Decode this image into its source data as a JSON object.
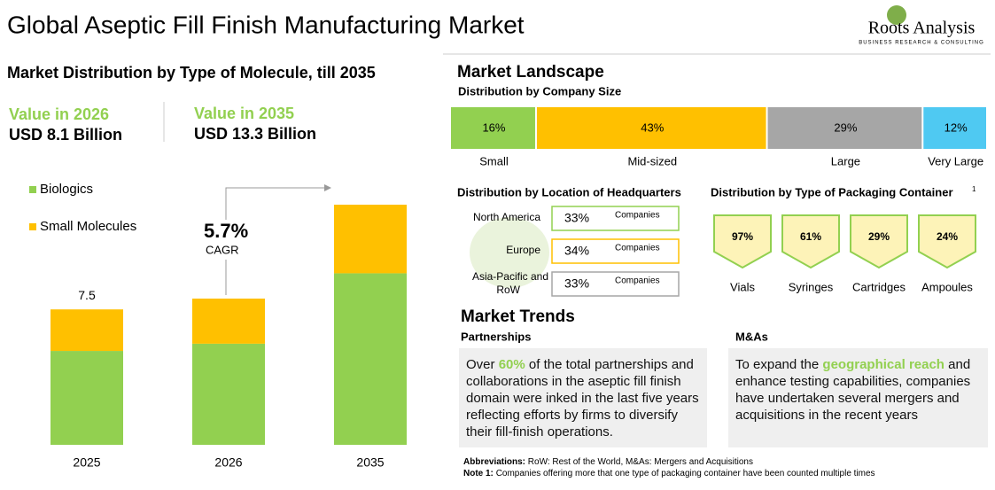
{
  "header": {
    "title": "Global Aseptic Fill Finish Manufacturing Market",
    "logo": "Roots Analysis",
    "logo_tagline": "BUSINESS RESEARCH & CONSULTING"
  },
  "left_panel": {
    "title": "Market Distribution by Type of Molecule, till 2035",
    "highlights": [
      {
        "label": "Value in 2026",
        "value": "USD 8.1 Billion"
      },
      {
        "label": "Value in 2035",
        "value": "USD 13.3 Billion"
      }
    ],
    "cagr": {
      "value": "5.7%",
      "label": "CAGR"
    }
  },
  "right_panel": {
    "title": "Market Landscape"
  },
  "chart_data": [
    {
      "type": "bar",
      "stacked": true,
      "categories": [
        "2025",
        "2026",
        "2035"
      ],
      "series": [
        {
          "name": "Biologics",
          "color": "#92d050",
          "values": [
            5.2,
            5.6,
            9.5
          ]
        },
        {
          "name": "Small Molecules",
          "color": "#ffc000",
          "values": [
            2.3,
            2.5,
            3.8
          ]
        }
      ],
      "annotation": "7.5"
    },
    {
      "type": "stacked-bar",
      "title": "Distribution by Company Size",
      "categories": [
        "Small",
        "Mid-sized",
        "Large",
        "Very Large"
      ],
      "values": [
        16,
        43,
        29,
        12
      ],
      "value_labels": [
        "16%",
        "43%",
        "29%",
        "12%"
      ],
      "colors": [
        "#92d050",
        "#ffc000",
        "#a6a6a6",
        "#4fc9f2"
      ]
    },
    {
      "type": "list",
      "title": "Distribution by Location of Headquarters",
      "categories": [
        "North America",
        "Europe",
        "Asia-Pacific and RoW"
      ],
      "values": [
        33,
        34,
        33
      ],
      "value_labels": [
        "33%",
        "34%",
        "33%"
      ],
      "unit_label": "Companies",
      "colors": [
        "#92d050",
        "#ffc000",
        "#a6a6a6"
      ]
    },
    {
      "type": "badge",
      "title": "Distribution by Type of Packaging Container",
      "footnote_marker": "1",
      "categories": [
        "Vials",
        "Syringes",
        "Cartridges",
        "Ampoules"
      ],
      "values": [
        97,
        61,
        29,
        24
      ],
      "value_labels": [
        "97%",
        "61%",
        "29%",
        "24%"
      ],
      "color": "#92d050",
      "fill": "#fdf3b8"
    }
  ],
  "trends": {
    "title": "Market Trends",
    "items": [
      {
        "heading": "Partnerships",
        "before": "Over ",
        "highlight": "60%",
        "after": " of the total partnerships and collaborations in the aseptic fill finish domain were inked in the last five years reflecting efforts by firms to diversify their fill-finish operations."
      },
      {
        "heading": "M&As",
        "before": "To expand the ",
        "highlight": "geographical reach",
        "after": " and enhance testing capabilities, companies have undertaken several mergers and acquisitions in the recent years"
      }
    ]
  },
  "footer": {
    "abbreviations_label": "Abbreviations:",
    "abbreviations": "RoW: Rest of the World, M&As: Mergers and Acquisitions",
    "note_label": "Note 1:",
    "note": "Companies offering more that one type of packaging container have been counted multiple times"
  }
}
